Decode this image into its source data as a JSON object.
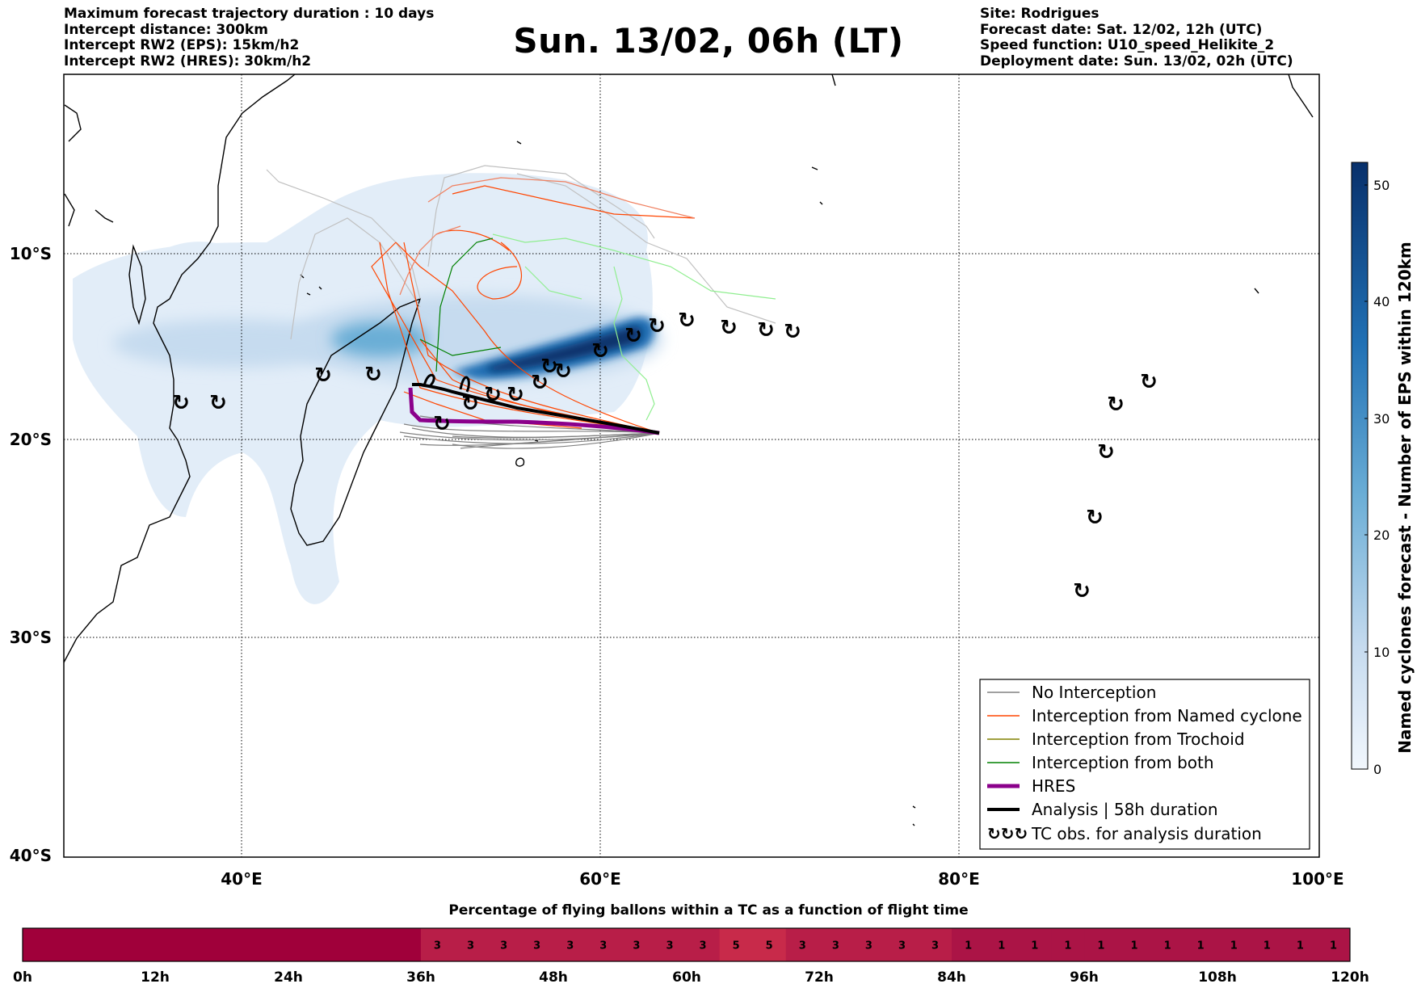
{
  "header": {
    "left_lines": [
      "Maximum forecast trajectory duration : 10 days",
      "Intercept distance: 300km",
      "Intercept RW2 (EPS):  15km/h2",
      "Intercept RW2 (HRES): 30km/h2"
    ],
    "title": "Sun. 13/02, 06h (LT)",
    "right_lines": [
      "Site: Rodrigues",
      "Forecast date: Sat. 12/02, 12h (UTC)",
      "Speed function: U10_speed_Helikite_2",
      "Deployment date: Sun. 13/02, 02h (UTC)"
    ]
  },
  "map": {
    "lon_labels": [
      "40°E",
      "60°E",
      "80°E",
      "100°E"
    ],
    "lat_labels": [
      "10°S",
      "20°S",
      "30°S",
      "40°S"
    ],
    "colorbar": {
      "title": "Named cyclones forecast - Number of EPS within 120km",
      "ticks": [
        "0",
        "10",
        "20",
        "30",
        "40",
        "50"
      ],
      "color_low": "#e4eef9",
      "color_high": "#08306b"
    },
    "legend": [
      {
        "label": "No Interception",
        "color": "#808080",
        "style": "thin"
      },
      {
        "label": "Interception from Named cyclone",
        "color": "#ff4500",
        "style": "thin"
      },
      {
        "label": "Interception from Trochoid",
        "color": "#808000",
        "style": "thin"
      },
      {
        "label": "Interception from both",
        "color": "#008000",
        "style": "thin"
      },
      {
        "label": "HRES",
        "color": "#8b008b",
        "style": "thick"
      },
      {
        "label": "Analysis | 58h duration",
        "color": "#000000",
        "style": "thick"
      },
      {
        "label": "TC obs. for analysis duration",
        "color": "#000000",
        "style": "symbol",
        "symbol": "↻↻↻"
      }
    ],
    "tc_symbol": "↻"
  },
  "strip": {
    "title": "Percentage of flying ballons within a TC as a function of flight time",
    "hour_labels": [
      "0h",
      "12h",
      "24h",
      "36h",
      "48h",
      "60h",
      "72h",
      "84h",
      "96h",
      "108h",
      "120h"
    ],
    "values": [
      0,
      0,
      0,
      0,
      0,
      0,
      0,
      0,
      0,
      0,
      0,
      0,
      3,
      3,
      3,
      3,
      3,
      3,
      3,
      3,
      3,
      5,
      5,
      3,
      3,
      3,
      3,
      3,
      1,
      1,
      1,
      1,
      1,
      1,
      1,
      1,
      1,
      1,
      1,
      1
    ],
    "colors": {
      "0": "#a0003a",
      "1": "#ab1446",
      "3": "#b81e48",
      "5": "#c82a4a"
    }
  }
}
